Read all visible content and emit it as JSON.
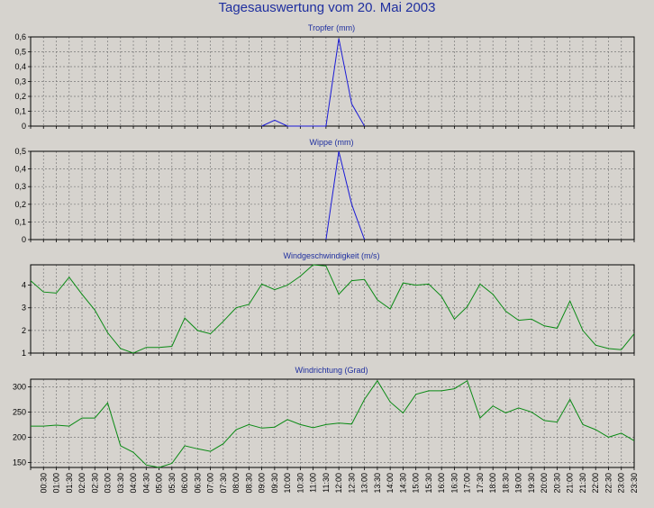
{
  "title": "Tagesauswertung vom 20. Mai 2003",
  "x_labels": [
    "00:30",
    "01:00",
    "01:30",
    "02:00",
    "02:30",
    "03:00",
    "03:30",
    "04:00",
    "04:30",
    "05:00",
    "05:30",
    "06:00",
    "06:30",
    "07:00",
    "07:30",
    "08:00",
    "08:30",
    "09:00",
    "09:30",
    "10:00",
    "10:30",
    "11:00",
    "11:30",
    "12:00",
    "12:30",
    "13:00",
    "13:30",
    "14:00",
    "14:30",
    "15:00",
    "15:30",
    "16:00",
    "16:30",
    "17:00",
    "17:30",
    "18:00",
    "18:30",
    "19:00",
    "19:30",
    "20:00",
    "20:30",
    "21:00",
    "21:30",
    "22:00",
    "22:30",
    "23:00",
    "23:30"
  ],
  "chart_data": [
    {
      "type": "line",
      "title": "Tropfer (mm)",
      "color": "#1a1ad6",
      "ylim": [
        0,
        0.6
      ],
      "yticks": [
        "0",
        "0,1",
        "0,2",
        "0,3",
        "0,4",
        "0,5",
        "0,6"
      ],
      "x_start": "00:00",
      "x_end": "23:30",
      "grid": true,
      "x": [
        "09:00",
        "09:30",
        "10:00",
        "11:30",
        "12:00",
        "12:30",
        "13:00"
      ],
      "values": [
        0.0,
        0.04,
        0.0,
        0.0,
        0.59,
        0.15,
        0.0
      ]
    },
    {
      "type": "line",
      "title": "Wippe (mm)",
      "color": "#1a1ad6",
      "ylim": [
        0,
        0.5
      ],
      "yticks": [
        "0",
        "0,1",
        "0,2",
        "0,3",
        "0,4",
        "0,5"
      ],
      "x_start": "00:00",
      "x_end": "23:30",
      "grid": true,
      "x": [
        "11:30",
        "12:00",
        "12:30",
        "13:00"
      ],
      "values": [
        0.0,
        0.5,
        0.2,
        0.0
      ]
    },
    {
      "type": "line",
      "title": "Windgeschwindigkeit (m/s)",
      "color": "#0a8a14",
      "ylim": [
        1,
        4.9
      ],
      "yticks": [
        "1",
        "2",
        "3",
        "4"
      ],
      "x_start": "00:00",
      "x_end": "23:30",
      "grid": true,
      "x": [
        "00:00",
        "00:30",
        "01:00",
        "01:30",
        "02:00",
        "02:30",
        "03:00",
        "03:30",
        "04:00",
        "04:30",
        "05:00",
        "05:30",
        "06:00",
        "06:30",
        "07:00",
        "07:30",
        "08:00",
        "08:30",
        "09:00",
        "09:30",
        "10:00",
        "10:30",
        "11:00",
        "11:30",
        "12:00",
        "12:30",
        "13:00",
        "13:30",
        "14:00",
        "14:30",
        "15:00",
        "15:30",
        "16:00",
        "16:30",
        "17:00",
        "17:30",
        "18:00",
        "18:30",
        "19:00",
        "19:30",
        "20:00",
        "20:30",
        "21:00",
        "21:30",
        "22:00",
        "22:30",
        "23:00",
        "23:30"
      ],
      "values": [
        4.2,
        3.7,
        3.65,
        4.35,
        3.6,
        2.9,
        1.9,
        1.2,
        1.0,
        1.25,
        1.25,
        1.3,
        2.55,
        2.0,
        1.85,
        2.4,
        3.0,
        3.15,
        4.05,
        3.8,
        4.0,
        4.4,
        4.9,
        4.85,
        3.6,
        4.2,
        4.25,
        3.35,
        2.95,
        4.1,
        4.0,
        4.05,
        3.5,
        2.5,
        3.05,
        4.05,
        3.6,
        2.85,
        2.45,
        2.5,
        2.2,
        2.1,
        3.3,
        2.0,
        1.35,
        1.2,
        1.15,
        1.85
      ]
    },
    {
      "type": "line",
      "title": "Windrichtung (Grad)",
      "color": "#0a8a14",
      "ylim": [
        140,
        315
      ],
      "yticks": [
        "150",
        "200",
        "250",
        "300"
      ],
      "x_start": "00:00",
      "x_end": "23:30",
      "grid": true,
      "x": [
        "00:00",
        "00:30",
        "01:00",
        "01:30",
        "02:00",
        "02:30",
        "03:00",
        "03:30",
        "04:00",
        "04:30",
        "05:00",
        "05:30",
        "06:00",
        "06:30",
        "07:00",
        "07:30",
        "08:00",
        "08:30",
        "09:00",
        "09:30",
        "10:00",
        "10:30",
        "11:00",
        "11:30",
        "12:00",
        "12:30",
        "13:00",
        "13:30",
        "14:00",
        "14:30",
        "15:00",
        "15:30",
        "16:00",
        "16:30",
        "17:00",
        "17:30",
        "18:00",
        "18:30",
        "19:00",
        "19:30",
        "20:00",
        "20:30",
        "21:00",
        "21:30",
        "22:00",
        "22:30",
        "23:00",
        "23:30"
      ],
      "values": [
        222,
        222,
        224,
        222,
        238,
        238,
        268,
        183,
        170,
        145,
        140,
        148,
        183,
        177,
        172,
        187,
        215,
        225,
        218,
        220,
        235,
        225,
        219,
        225,
        228,
        226,
        275,
        312,
        270,
        248,
        285,
        292,
        292,
        296,
        312,
        238,
        262,
        248,
        258,
        250,
        233,
        230,
        275,
        225,
        215,
        200,
        208,
        193
      ]
    }
  ]
}
